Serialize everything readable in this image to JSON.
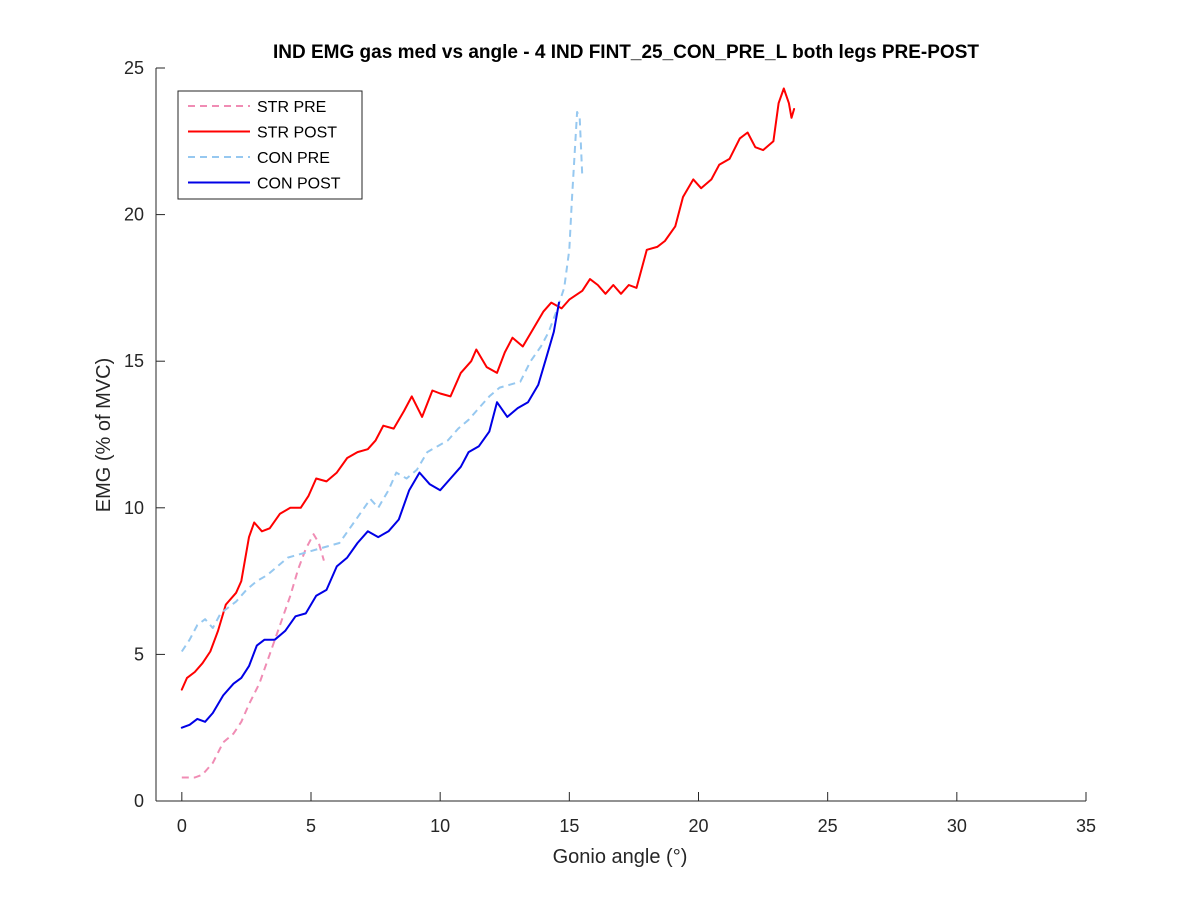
{
  "chart_data": {
    "type": "line",
    "title": "IND EMG gas med vs angle - 4 IND FINT_25_CON_PRE_L both legs PRE-POST",
    "xlabel": "Gonio angle (°)",
    "ylabel": "EMG (% of MVC)",
    "xlim": [
      -1,
      35
    ],
    "ylim": [
      0,
      25
    ],
    "xticks": [
      0,
      5,
      10,
      15,
      20,
      25,
      30,
      35
    ],
    "yticks": [
      0,
      5,
      10,
      15,
      20,
      25
    ],
    "grid": false,
    "legend_position": "top-left",
    "series": [
      {
        "name": "STR PRE",
        "color": "#f08cb4",
        "style": "dashed",
        "points": [
          [
            0.0,
            0.8
          ],
          [
            0.5,
            0.8
          ],
          [
            0.8,
            0.9
          ],
          [
            1.2,
            1.3
          ],
          [
            1.6,
            2.0
          ],
          [
            2.0,
            2.3
          ],
          [
            2.3,
            2.7
          ],
          [
            2.6,
            3.3
          ],
          [
            3.0,
            4.0
          ],
          [
            3.4,
            5.0
          ],
          [
            3.8,
            6.0
          ],
          [
            4.2,
            7.0
          ],
          [
            4.5,
            7.9
          ],
          [
            4.8,
            8.6
          ],
          [
            5.1,
            9.1
          ],
          [
            5.3,
            8.8
          ],
          [
            5.5,
            8.2
          ]
        ]
      },
      {
        "name": "STR POST",
        "color": "#ff0000",
        "style": "solid",
        "points": [
          [
            0.0,
            3.8
          ],
          [
            0.2,
            4.2
          ],
          [
            0.5,
            4.4
          ],
          [
            0.8,
            4.7
          ],
          [
            1.1,
            5.1
          ],
          [
            1.4,
            5.8
          ],
          [
            1.7,
            6.7
          ],
          [
            2.1,
            7.1
          ],
          [
            2.3,
            7.5
          ],
          [
            2.6,
            9.0
          ],
          [
            2.8,
            9.5
          ],
          [
            3.1,
            9.2
          ],
          [
            3.4,
            9.3
          ],
          [
            3.8,
            9.8
          ],
          [
            4.2,
            10.0
          ],
          [
            4.6,
            10.0
          ],
          [
            4.9,
            10.4
          ],
          [
            5.2,
            11.0
          ],
          [
            5.6,
            10.9
          ],
          [
            6.0,
            11.2
          ],
          [
            6.4,
            11.7
          ],
          [
            6.8,
            11.9
          ],
          [
            7.2,
            12.0
          ],
          [
            7.5,
            12.3
          ],
          [
            7.8,
            12.8
          ],
          [
            8.2,
            12.7
          ],
          [
            8.6,
            13.3
          ],
          [
            8.9,
            13.8
          ],
          [
            9.3,
            13.1
          ],
          [
            9.7,
            14.0
          ],
          [
            10.0,
            13.9
          ],
          [
            10.4,
            13.8
          ],
          [
            10.8,
            14.6
          ],
          [
            11.2,
            15.0
          ],
          [
            11.4,
            15.4
          ],
          [
            11.8,
            14.8
          ],
          [
            12.2,
            14.6
          ],
          [
            12.5,
            15.3
          ],
          [
            12.8,
            15.8
          ],
          [
            13.2,
            15.5
          ],
          [
            13.6,
            16.1
          ],
          [
            14.0,
            16.7
          ],
          [
            14.3,
            17.0
          ],
          [
            14.7,
            16.8
          ],
          [
            15.0,
            17.1
          ],
          [
            15.5,
            17.4
          ],
          [
            15.8,
            17.8
          ],
          [
            16.1,
            17.6
          ],
          [
            16.4,
            17.3
          ],
          [
            16.7,
            17.6
          ],
          [
            17.0,
            17.3
          ],
          [
            17.3,
            17.6
          ],
          [
            17.6,
            17.5
          ],
          [
            18.0,
            18.8
          ],
          [
            18.4,
            18.9
          ],
          [
            18.7,
            19.1
          ],
          [
            19.1,
            19.6
          ],
          [
            19.4,
            20.6
          ],
          [
            19.8,
            21.2
          ],
          [
            20.1,
            20.9
          ],
          [
            20.5,
            21.2
          ],
          [
            20.8,
            21.7
          ],
          [
            21.2,
            21.9
          ],
          [
            21.6,
            22.6
          ],
          [
            21.9,
            22.8
          ],
          [
            22.2,
            22.3
          ],
          [
            22.5,
            22.2
          ],
          [
            22.9,
            22.5
          ],
          [
            23.1,
            23.8
          ],
          [
            23.3,
            24.3
          ],
          [
            23.5,
            23.8
          ],
          [
            23.6,
            23.3
          ],
          [
            23.7,
            23.6
          ]
        ]
      },
      {
        "name": "CON PRE",
        "color": "#96c8f0",
        "style": "dashed",
        "points": [
          [
            0.0,
            5.1
          ],
          [
            0.3,
            5.5
          ],
          [
            0.6,
            6.0
          ],
          [
            0.9,
            6.2
          ],
          [
            1.2,
            5.9
          ],
          [
            1.5,
            6.4
          ],
          [
            1.8,
            6.6
          ],
          [
            2.1,
            6.8
          ],
          [
            2.5,
            7.2
          ],
          [
            2.9,
            7.5
          ],
          [
            3.3,
            7.7
          ],
          [
            3.7,
            8.0
          ],
          [
            4.1,
            8.3
          ],
          [
            4.5,
            8.4
          ],
          [
            4.9,
            8.5
          ],
          [
            5.3,
            8.6
          ],
          [
            5.7,
            8.7
          ],
          [
            6.1,
            8.8
          ],
          [
            6.5,
            9.3
          ],
          [
            6.9,
            9.8
          ],
          [
            7.3,
            10.3
          ],
          [
            7.6,
            10.0
          ],
          [
            8.0,
            10.6
          ],
          [
            8.3,
            11.2
          ],
          [
            8.7,
            11.0
          ],
          [
            9.1,
            11.3
          ],
          [
            9.5,
            11.9
          ],
          [
            9.9,
            12.1
          ],
          [
            10.3,
            12.3
          ],
          [
            10.7,
            12.7
          ],
          [
            11.1,
            13.0
          ],
          [
            11.5,
            13.4
          ],
          [
            11.9,
            13.8
          ],
          [
            12.3,
            14.1
          ],
          [
            12.7,
            14.2
          ],
          [
            13.1,
            14.3
          ],
          [
            13.5,
            15.0
          ],
          [
            13.9,
            15.5
          ],
          [
            14.2,
            16.0
          ],
          [
            14.5,
            16.7
          ],
          [
            14.8,
            17.5
          ],
          [
            15.0,
            18.8
          ],
          [
            15.1,
            20.5
          ],
          [
            15.2,
            22.0
          ],
          [
            15.3,
            23.5
          ],
          [
            15.4,
            23.3
          ],
          [
            15.5,
            21.3
          ]
        ]
      },
      {
        "name": "CON POST",
        "color": "#0000e6",
        "style": "solid",
        "points": [
          [
            0.0,
            2.5
          ],
          [
            0.3,
            2.6
          ],
          [
            0.6,
            2.8
          ],
          [
            0.9,
            2.7
          ],
          [
            1.2,
            3.0
          ],
          [
            1.6,
            3.6
          ],
          [
            2.0,
            4.0
          ],
          [
            2.3,
            4.2
          ],
          [
            2.6,
            4.6
          ],
          [
            2.9,
            5.3
          ],
          [
            3.2,
            5.5
          ],
          [
            3.6,
            5.5
          ],
          [
            4.0,
            5.8
          ],
          [
            4.4,
            6.3
          ],
          [
            4.8,
            6.4
          ],
          [
            5.2,
            7.0
          ],
          [
            5.6,
            7.2
          ],
          [
            6.0,
            8.0
          ],
          [
            6.4,
            8.3
          ],
          [
            6.8,
            8.8
          ],
          [
            7.2,
            9.2
          ],
          [
            7.6,
            9.0
          ],
          [
            8.0,
            9.2
          ],
          [
            8.4,
            9.6
          ],
          [
            8.8,
            10.6
          ],
          [
            9.2,
            11.2
          ],
          [
            9.6,
            10.8
          ],
          [
            10.0,
            10.6
          ],
          [
            10.4,
            11.0
          ],
          [
            10.8,
            11.4
          ],
          [
            11.1,
            11.9
          ],
          [
            11.5,
            12.1
          ],
          [
            11.9,
            12.6
          ],
          [
            12.2,
            13.6
          ],
          [
            12.6,
            13.1
          ],
          [
            13.0,
            13.4
          ],
          [
            13.4,
            13.6
          ],
          [
            13.8,
            14.2
          ],
          [
            14.1,
            15.1
          ],
          [
            14.4,
            16.0
          ],
          [
            14.6,
            17.0
          ]
        ]
      }
    ]
  }
}
